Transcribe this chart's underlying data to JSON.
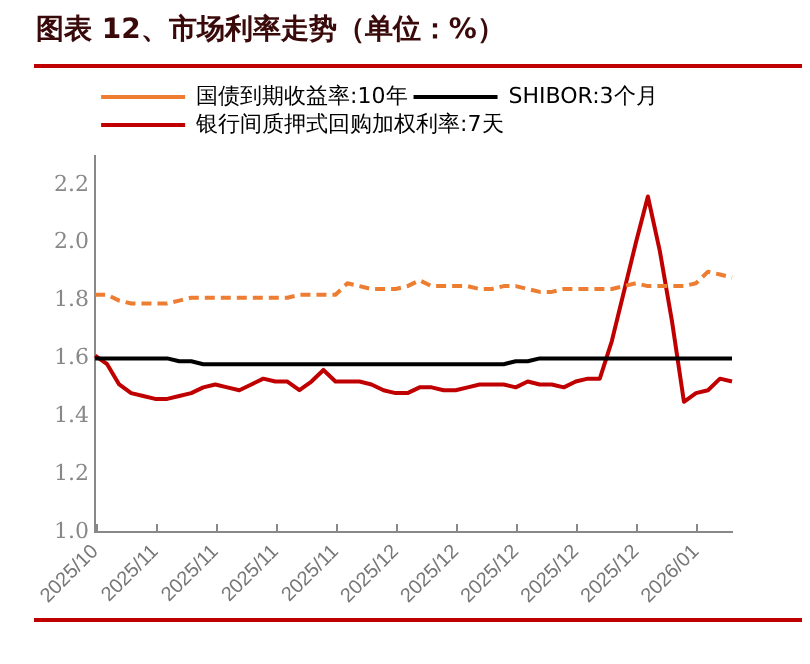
{
  "chart_data": {
    "type": "line",
    "title": "图表 12、市场利率走势（单位：%）",
    "categories": [
      "2025/10",
      null,
      null,
      null,
      null,
      "2025/11",
      null,
      null,
      null,
      null,
      "2025/11",
      null,
      null,
      null,
      null,
      "2025/11",
      null,
      null,
      null,
      null,
      "2025/11",
      null,
      null,
      null,
      null,
      "2025/12",
      null,
      null,
      null,
      null,
      "2025/12",
      null,
      null,
      null,
      null,
      "2025/12",
      null,
      null,
      null,
      null,
      "2025/12",
      null,
      null,
      null,
      null,
      "2025/12",
      null,
      null,
      null,
      null,
      "2026/01",
      null,
      null,
      null
    ],
    "series": [
      {
        "name": "国债到期收益率:10年",
        "color": "#ed7d31",
        "line_style": "dashed",
        "values": [
          1.82,
          1.82,
          1.8,
          1.79,
          1.79,
          1.79,
          1.79,
          1.8,
          1.81,
          1.81,
          1.81,
          1.81,
          1.81,
          1.81,
          1.81,
          1.81,
          1.81,
          1.82,
          1.82,
          1.82,
          1.82,
          1.86,
          1.85,
          1.84,
          1.84,
          1.84,
          1.85,
          1.87,
          1.85,
          1.85,
          1.85,
          1.85,
          1.84,
          1.84,
          1.85,
          1.85,
          1.84,
          1.83,
          1.83,
          1.84,
          1.84,
          1.84,
          1.84,
          1.84,
          1.85,
          1.86,
          1.85,
          1.85,
          1.85,
          1.85,
          1.86,
          1.9,
          1.89,
          1.88
        ]
      },
      {
        "name": "SHIBOR:3个月",
        "color": "#000000",
        "line_style": "solid",
        "values": [
          1.6,
          1.6,
          1.6,
          1.6,
          1.6,
          1.6,
          1.6,
          1.59,
          1.59,
          1.58,
          1.58,
          1.58,
          1.58,
          1.58,
          1.58,
          1.58,
          1.58,
          1.58,
          1.58,
          1.58,
          1.58,
          1.58,
          1.58,
          1.58,
          1.58,
          1.58,
          1.58,
          1.58,
          1.58,
          1.58,
          1.58,
          1.58,
          1.58,
          1.58,
          1.58,
          1.59,
          1.59,
          1.6,
          1.6,
          1.6,
          1.6,
          1.6,
          1.6,
          1.6,
          1.6,
          1.6,
          1.6,
          1.6,
          1.6,
          1.6,
          1.6,
          1.6,
          1.6,
          1.6
        ]
      },
      {
        "name": "银行间质押式回购加权利率:7天",
        "color": "#c00000",
        "line_style": "solid",
        "values": [
          1.61,
          1.58,
          1.51,
          1.48,
          1.47,
          1.46,
          1.46,
          1.47,
          1.48,
          1.5,
          1.51,
          1.5,
          1.49,
          1.51,
          1.53,
          1.52,
          1.52,
          1.49,
          1.52,
          1.56,
          1.52,
          1.52,
          1.52,
          1.51,
          1.49,
          1.48,
          1.48,
          1.5,
          1.5,
          1.49,
          1.49,
          1.5,
          1.51,
          1.51,
          1.51,
          1.5,
          1.52,
          1.51,
          1.51,
          1.5,
          1.52,
          1.53,
          1.53,
          1.66,
          1.83,
          2.0,
          2.16,
          1.97,
          1.73,
          1.45,
          1.48,
          1.49,
          1.53,
          1.52
        ]
      }
    ],
    "ylim": [
      1.0,
      2.3
    ],
    "yticks": [
      {
        "value": 1,
        "label": "1.0"
      },
      1.2,
      1.4,
      1.6,
      1.8,
      {
        "value": 2,
        "label": "2.0"
      },
      2.2
    ],
    "grid": false,
    "legend": "top left",
    "marker": "none"
  }
}
